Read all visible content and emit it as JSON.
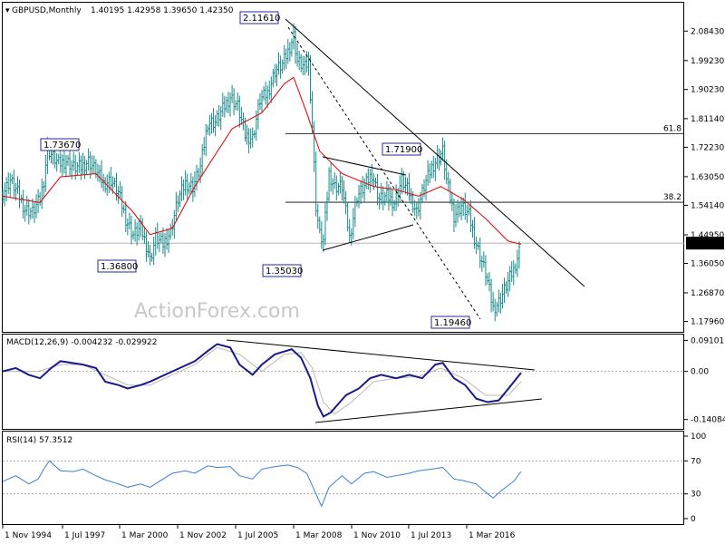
{
  "header": {
    "symbol": "GBPUSD,Monthly",
    "ohlc": "1.40195 1.42958 1.39650 1.42350"
  },
  "watermark": "ActionForex.com",
  "colors": {
    "price_bars": "#1a8a8a",
    "moving_average": "#dd1111",
    "trendline": "#000000",
    "macd_line": "#1a1a8a",
    "macd_signal": "#b8b8b8",
    "rsi_line": "#3a7fd0",
    "current_price_box": "#000000"
  },
  "chart_data": [
    {
      "type": "candlestick",
      "panel": "price",
      "ylim": [
        1.15,
        2.15
      ],
      "y_ticks": [
        "2.08430",
        "1.99230",
        "1.90230",
        "1.81140",
        "1.72230",
        "1.63050",
        "1.54140",
        "1.44950",
        "1.36050",
        "1.26870",
        "1.17960"
      ],
      "x_ticks": [
        "1 Nov 1994",
        "1 Jul 1997",
        "1 Mar 2000",
        "1 Nov 2002",
        "1 Jul 2005",
        "1 Mar 2008",
        "1 Nov 2010",
        "1 Jul 2013",
        "1 Mar 2016"
      ],
      "current_price": "1.42350",
      "annotations": [
        "2.11610",
        "1.73670",
        "1.36800",
        "1.35030",
        "1.71900",
        "1.19460"
      ],
      "fib_levels": [
        {
          "label": "61.8",
          "value": 1.764
        },
        {
          "label": "38.2",
          "value": 1.551
        }
      ],
      "series_close": [
        {
          "x": "1994-11",
          "y": 1.58
        },
        {
          "x": "1995-03",
          "y": 1.62
        },
        {
          "x": "1995-07",
          "y": 1.58
        },
        {
          "x": "1995-11",
          "y": 1.53
        },
        {
          "x": "1996-03",
          "y": 1.52
        },
        {
          "x": "1996-07",
          "y": 1.56
        },
        {
          "x": "1996-09",
          "y": 1.62
        },
        {
          "x": "1996-11",
          "y": 1.72
        },
        {
          "x": "1997-01",
          "y": 1.7
        },
        {
          "x": "1997-05",
          "y": 1.67
        },
        {
          "x": "1997-09",
          "y": 1.68
        },
        {
          "x": "1998-01",
          "y": 1.66
        },
        {
          "x": "1998-05",
          "y": 1.66
        },
        {
          "x": "1998-09",
          "y": 1.68
        },
        {
          "x": "1999-01",
          "y": 1.65
        },
        {
          "x": "1999-05",
          "y": 1.61
        },
        {
          "x": "1999-09",
          "y": 1.62
        },
        {
          "x": "2000-01",
          "y": 1.58
        },
        {
          "x": "2000-05",
          "y": 1.5
        },
        {
          "x": "2000-09",
          "y": 1.45
        },
        {
          "x": "2001-01",
          "y": 1.47
        },
        {
          "x": "2001-05",
          "y": 1.4
        },
        {
          "x": "2001-06",
          "y": 1.37
        },
        {
          "x": "2001-09",
          "y": 1.44
        },
        {
          "x": "2002-01",
          "y": 1.42
        },
        {
          "x": "2002-05",
          "y": 1.46
        },
        {
          "x": "2002-09",
          "y": 1.56
        },
        {
          "x": "2003-01",
          "y": 1.61
        },
        {
          "x": "2003-05",
          "y": 1.6
        },
        {
          "x": "2003-09",
          "y": 1.66
        },
        {
          "x": "2004-01",
          "y": 1.8
        },
        {
          "x": "2004-05",
          "y": 1.8
        },
        {
          "x": "2004-09",
          "y": 1.84
        },
        {
          "x": "2005-01",
          "y": 1.88
        },
        {
          "x": "2005-05",
          "y": 1.85
        },
        {
          "x": "2005-09",
          "y": 1.76
        },
        {
          "x": "2006-01",
          "y": 1.75
        },
        {
          "x": "2006-05",
          "y": 1.87
        },
        {
          "x": "2006-09",
          "y": 1.89
        },
        {
          "x": "2007-01",
          "y": 1.96
        },
        {
          "x": "2007-05",
          "y": 1.98
        },
        {
          "x": "2007-08",
          "y": 2.02
        },
        {
          "x": "2007-11",
          "y": 2.07
        },
        {
          "x": "2008-01",
          "y": 1.99
        },
        {
          "x": "2008-05",
          "y": 1.97
        },
        {
          "x": "2008-07",
          "y": 1.99
        },
        {
          "x": "2008-09",
          "y": 1.79
        },
        {
          "x": "2008-11",
          "y": 1.54
        },
        {
          "x": "2009-01",
          "y": 1.45
        },
        {
          "x": "2009-03",
          "y": 1.43
        },
        {
          "x": "2009-06",
          "y": 1.64
        },
        {
          "x": "2009-09",
          "y": 1.6
        },
        {
          "x": "2010-01",
          "y": 1.6
        },
        {
          "x": "2010-05",
          "y": 1.44
        },
        {
          "x": "2010-09",
          "y": 1.57
        },
        {
          "x": "2011-01",
          "y": 1.6
        },
        {
          "x": "2011-05",
          "y": 1.64
        },
        {
          "x": "2011-09",
          "y": 1.56
        },
        {
          "x": "2012-01",
          "y": 1.57
        },
        {
          "x": "2012-05",
          "y": 1.55
        },
        {
          "x": "2012-09",
          "y": 1.62
        },
        {
          "x": "2013-01",
          "y": 1.58
        },
        {
          "x": "2013-05",
          "y": 1.52
        },
        {
          "x": "2013-09",
          "y": 1.6
        },
        {
          "x": "2014-01",
          "y": 1.66
        },
        {
          "x": "2014-07",
          "y": 1.71
        },
        {
          "x": "2014-09",
          "y": 1.62
        },
        {
          "x": "2015-01",
          "y": 1.51
        },
        {
          "x": "2015-05",
          "y": 1.54
        },
        {
          "x": "2015-09",
          "y": 1.51
        },
        {
          "x": "2016-01",
          "y": 1.42
        },
        {
          "x": "2016-06",
          "y": 1.33
        },
        {
          "x": "2016-10",
          "y": 1.22
        },
        {
          "x": "2017-01",
          "y": 1.24
        },
        {
          "x": "2017-05",
          "y": 1.29
        },
        {
          "x": "2017-09",
          "y": 1.34
        },
        {
          "x": "2018-01",
          "y": 1.42
        }
      ],
      "moving_average": [
        {
          "x": "1994-11",
          "y": 1.57
        },
        {
          "x": "1996-07",
          "y": 1.55
        },
        {
          "x": "1997-06",
          "y": 1.63
        },
        {
          "x": "1999-01",
          "y": 1.64
        },
        {
          "x": "2000-09",
          "y": 1.52
        },
        {
          "x": "2001-06",
          "y": 1.45
        },
        {
          "x": "2002-06",
          "y": 1.47
        },
        {
          "x": "2003-06",
          "y": 1.6
        },
        {
          "x": "2005-02",
          "y": 1.78
        },
        {
          "x": "2006-06",
          "y": 1.83
        },
        {
          "x": "2007-06",
          "y": 1.92
        },
        {
          "x": "2007-11",
          "y": 1.94
        },
        {
          "x": "2008-06",
          "y": 1.83
        },
        {
          "x": "2009-01",
          "y": 1.71
        },
        {
          "x": "2010-01",
          "y": 1.64
        },
        {
          "x": "2011-06",
          "y": 1.6
        },
        {
          "x": "2012-06",
          "y": 1.59
        },
        {
          "x": "2013-06",
          "y": 1.57
        },
        {
          "x": "2014-06",
          "y": 1.6
        },
        {
          "x": "2015-06",
          "y": 1.56
        },
        {
          "x": "2016-06",
          "y": 1.5
        },
        {
          "x": "2017-06",
          "y": 1.43
        },
        {
          "x": "2018-01",
          "y": 1.42
        }
      ]
    },
    {
      "type": "line",
      "panel": "macd",
      "title": "MACD(12,26,9) -0.004232 -0.029922",
      "ylim": [
        -0.155,
        0.1
      ],
      "y_ticks": [
        "0.091015",
        "0.00",
        "-0.140843"
      ],
      "series": [
        {
          "values": [
            {
              "x": "1994-11",
              "y": 0.0
            },
            {
              "x": "1995-06",
              "y": 0.01
            },
            {
              "x": "1996-01",
              "y": -0.01
            },
            {
              "x": "1996-07",
              "y": -0.02
            },
            {
              "x": "1997-01",
              "y": 0.01
            },
            {
              "x": "1997-06",
              "y": 0.03
            },
            {
              "x": "1998-06",
              "y": 0.02
            },
            {
              "x": "1999-01",
              "y": 0.01
            },
            {
              "x": "1999-06",
              "y": -0.03
            },
            {
              "x": "2000-01",
              "y": -0.04
            },
            {
              "x": "2000-06",
              "y": -0.05
            },
            {
              "x": "2001-01",
              "y": -0.04
            },
            {
              "x": "2001-06",
              "y": -0.03
            },
            {
              "x": "2002-06",
              "y": 0.0
            },
            {
              "x": "2003-06",
              "y": 0.03
            },
            {
              "x": "2004-01",
              "y": 0.06
            },
            {
              "x": "2004-06",
              "y": 0.08
            },
            {
              "x": "2005-01",
              "y": 0.07
            },
            {
              "x": "2005-06",
              "y": 0.02
            },
            {
              "x": "2006-01",
              "y": -0.01
            },
            {
              "x": "2006-06",
              "y": 0.02
            },
            {
              "x": "2007-01",
              "y": 0.05
            },
            {
              "x": "2007-10",
              "y": 0.065
            },
            {
              "x": "2008-03",
              "y": 0.04
            },
            {
              "x": "2008-08",
              "y": -0.02
            },
            {
              "x": "2008-12",
              "y": -0.1
            },
            {
              "x": "2009-03",
              "y": -0.132
            },
            {
              "x": "2009-07",
              "y": -0.12
            },
            {
              "x": "2010-03",
              "y": -0.07
            },
            {
              "x": "2010-10",
              "y": -0.05
            },
            {
              "x": "2011-04",
              "y": -0.02
            },
            {
              "x": "2011-10",
              "y": -0.01
            },
            {
              "x": "2012-06",
              "y": -0.02
            },
            {
              "x": "2013-01",
              "y": -0.01
            },
            {
              "x": "2013-08",
              "y": -0.02
            },
            {
              "x": "2014-03",
              "y": 0.02
            },
            {
              "x": "2014-07",
              "y": 0.025
            },
            {
              "x": "2015-01",
              "y": -0.02
            },
            {
              "x": "2015-07",
              "y": -0.04
            },
            {
              "x": "2016-01",
              "y": -0.08
            },
            {
              "x": "2016-07",
              "y": -0.09
            },
            {
              "x": "2017-01",
              "y": -0.085
            },
            {
              "x": "2017-07",
              "y": -0.045
            },
            {
              "x": "2018-01",
              "y": -0.004
            }
          ]
        },
        {
          "values": [
            {
              "x": "1994-11",
              "y": 0.0
            },
            {
              "x": "1996-06",
              "y": 0.0
            },
            {
              "x": "1997-06",
              "y": 0.02
            },
            {
              "x": "1998-06",
              "y": 0.02
            },
            {
              "x": "1999-06",
              "y": -0.01
            },
            {
              "x": "2000-06",
              "y": -0.04
            },
            {
              "x": "2001-06",
              "y": -0.04
            },
            {
              "x": "2002-06",
              "y": -0.01
            },
            {
              "x": "2003-06",
              "y": 0.02
            },
            {
              "x": "2004-06",
              "y": 0.07
            },
            {
              "x": "2005-06",
              "y": 0.05
            },
            {
              "x": "2006-06",
              "y": 0.0
            },
            {
              "x": "2007-06",
              "y": 0.05
            },
            {
              "x": "2008-03",
              "y": 0.055
            },
            {
              "x": "2008-09",
              "y": 0.01
            },
            {
              "x": "2009-03",
              "y": -0.09
            },
            {
              "x": "2009-09",
              "y": -0.125
            },
            {
              "x": "2010-06",
              "y": -0.09
            },
            {
              "x": "2011-06",
              "y": -0.03
            },
            {
              "x": "2012-06",
              "y": -0.02
            },
            {
              "x": "2013-06",
              "y": -0.015
            },
            {
              "x": "2014-06",
              "y": 0.01
            },
            {
              "x": "2015-06",
              "y": -0.02
            },
            {
              "x": "2016-06",
              "y": -0.07
            },
            {
              "x": "2017-06",
              "y": -0.07
            },
            {
              "x": "2018-01",
              "y": -0.03
            }
          ]
        }
      ]
    },
    {
      "type": "line",
      "panel": "rsi",
      "title": "RSI(14) 57.3512",
      "ylim": [
        0,
        100
      ],
      "y_ticks": [
        "100",
        "70",
        "30",
        "0"
      ],
      "levels": [
        70,
        30
      ],
      "series": [
        {
          "values": [
            {
              "x": "1994-11",
              "y": 45
            },
            {
              "x": "1995-06",
              "y": 52
            },
            {
              "x": "1996-01",
              "y": 42
            },
            {
              "x": "1996-06",
              "y": 48
            },
            {
              "x": "1996-09",
              "y": 60
            },
            {
              "x": "1996-12",
              "y": 70
            },
            {
              "x": "1997-06",
              "y": 58
            },
            {
              "x": "1998-01",
              "y": 57
            },
            {
              "x": "1998-06",
              "y": 60
            },
            {
              "x": "1999-01",
              "y": 52
            },
            {
              "x": "1999-06",
              "y": 47
            },
            {
              "x": "2000-01",
              "y": 42
            },
            {
              "x": "2000-06",
              "y": 38
            },
            {
              "x": "2001-01",
              "y": 42
            },
            {
              "x": "2001-06",
              "y": 38
            },
            {
              "x": "2002-01",
              "y": 48
            },
            {
              "x": "2002-06",
              "y": 55
            },
            {
              "x": "2003-01",
              "y": 58
            },
            {
              "x": "2003-06",
              "y": 55
            },
            {
              "x": "2004-01",
              "y": 64
            },
            {
              "x": "2004-06",
              "y": 62
            },
            {
              "x": "2005-01",
              "y": 63
            },
            {
              "x": "2005-06",
              "y": 52
            },
            {
              "x": "2006-01",
              "y": 48
            },
            {
              "x": "2006-06",
              "y": 60
            },
            {
              "x": "2007-01",
              "y": 63
            },
            {
              "x": "2007-08",
              "y": 65
            },
            {
              "x": "2008-01",
              "y": 62
            },
            {
              "x": "2008-06",
              "y": 55
            },
            {
              "x": "2008-11",
              "y": 30
            },
            {
              "x": "2009-02",
              "y": 15
            },
            {
              "x": "2009-06",
              "y": 38
            },
            {
              "x": "2010-01",
              "y": 52
            },
            {
              "x": "2010-06",
              "y": 42
            },
            {
              "x": "2011-01",
              "y": 55
            },
            {
              "x": "2011-06",
              "y": 57
            },
            {
              "x": "2012-01",
              "y": 50
            },
            {
              "x": "2012-06",
              "y": 52
            },
            {
              "x": "2013-01",
              "y": 55
            },
            {
              "x": "2013-06",
              "y": 58
            },
            {
              "x": "2014-01",
              "y": 60
            },
            {
              "x": "2014-07",
              "y": 62
            },
            {
              "x": "2015-01",
              "y": 48
            },
            {
              "x": "2015-06",
              "y": 46
            },
            {
              "x": "2016-01",
              "y": 42
            },
            {
              "x": "2016-06",
              "y": 32
            },
            {
              "x": "2016-10",
              "y": 25
            },
            {
              "x": "2017-03",
              "y": 35
            },
            {
              "x": "2017-09",
              "y": 45
            },
            {
              "x": "2018-01",
              "y": 57
            }
          ]
        }
      ]
    }
  ]
}
